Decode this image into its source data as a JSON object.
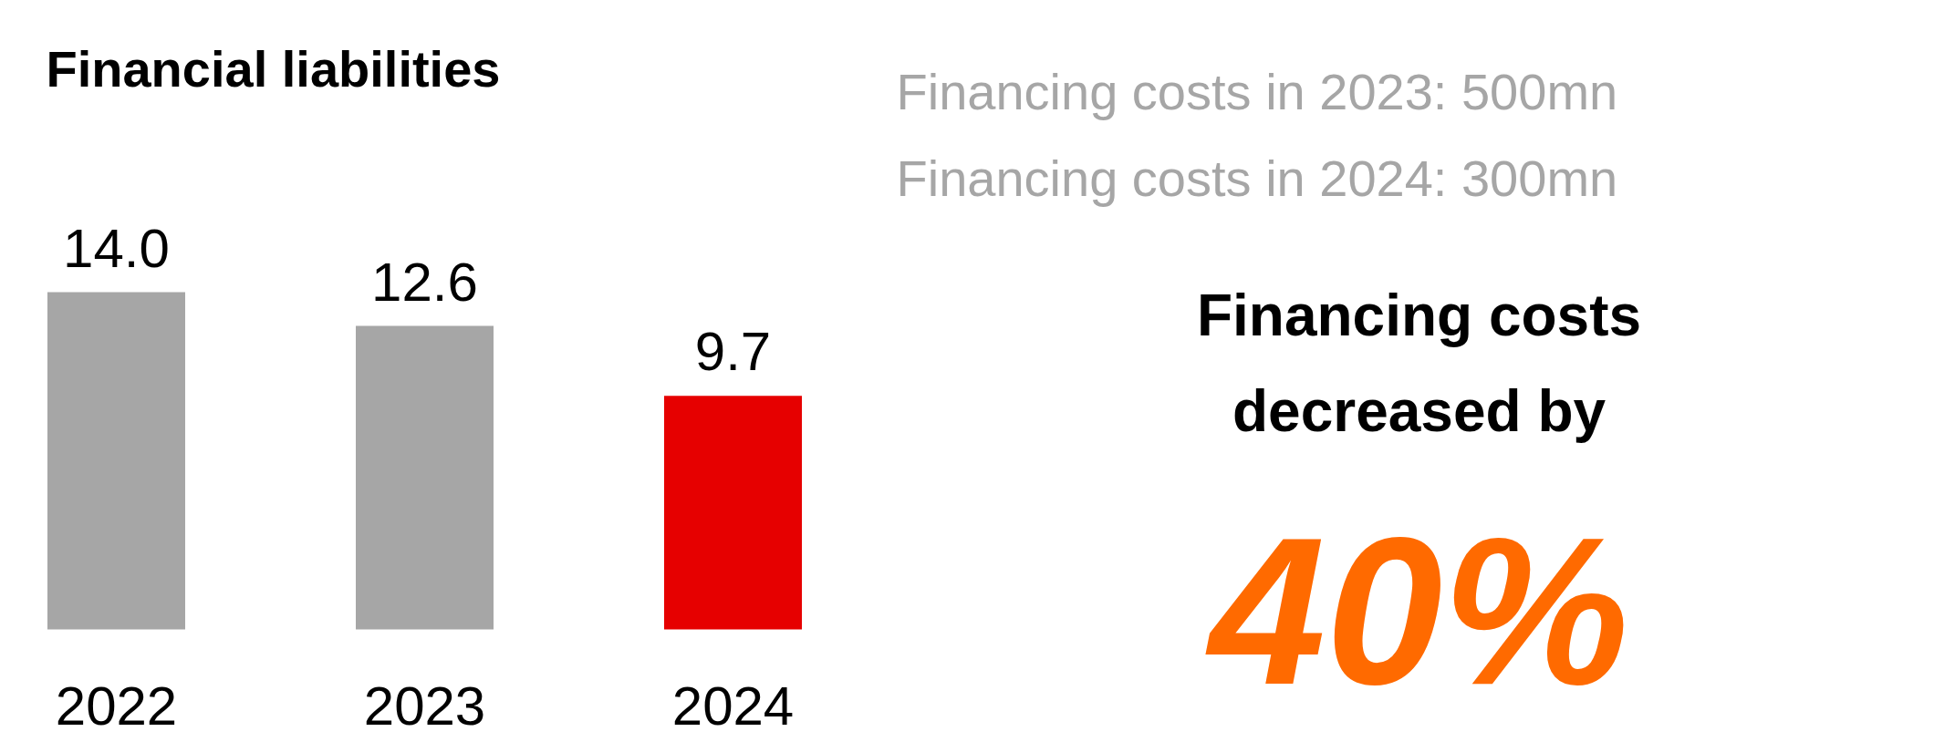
{
  "chart_data": [
    {
      "type": "bar",
      "title": "Financial liabilities",
      "categories": [
        "2022",
        "2023",
        "2024"
      ],
      "values": [
        14.0,
        12.6,
        9.7
      ],
      "colors": [
        "#a6a6a6",
        "#a6a6a6",
        "#e60000"
      ],
      "value_labels": [
        "14.0",
        "12.6",
        "9.7"
      ]
    },
    {
      "type": "other",
      "annotations": [
        "Financing costs in 2023: 500mn",
        "Financing costs in 2024: 300mn",
        "Financing costs",
        "decreased by",
        "40%"
      ]
    }
  ]
}
